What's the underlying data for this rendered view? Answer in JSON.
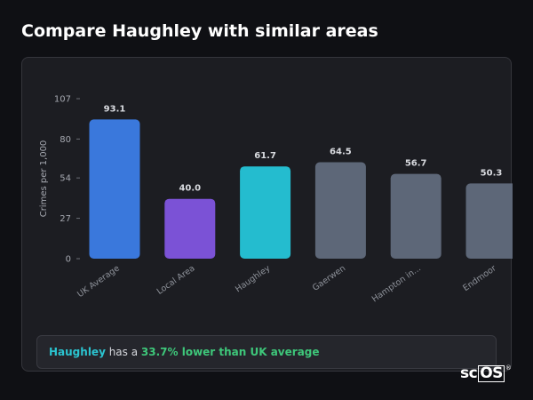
{
  "page": {
    "title": "Compare Haughley with similar areas"
  },
  "chart_data": {
    "type": "bar",
    "categories": [
      "UK Average",
      "Local Area",
      "Haughley",
      "Gaerwen",
      "Hampton in...",
      "Endmoor"
    ],
    "values": [
      93.1,
      40.0,
      61.7,
      64.5,
      56.7,
      50.3
    ],
    "value_labels": [
      "93.1",
      "40.0",
      "61.7",
      "64.5",
      "56.7",
      "50.3"
    ],
    "colors": [
      "#3a78dc",
      "#7b52d6",
      "#24bccf",
      "#5d6778",
      "#5d6778",
      "#5d6778"
    ],
    "ylabel": "Crimes per 1,000",
    "xlabel": "",
    "ylim": [
      0,
      107
    ],
    "yticks": [
      0,
      27,
      54,
      80,
      107
    ],
    "grid": false
  },
  "summary": {
    "area": "Haughley",
    "middle": " has a ",
    "difference": "33.7% lower than UK average"
  },
  "logo": {
    "prefix": "sc",
    "boxed": "OS",
    "mark": "®"
  }
}
